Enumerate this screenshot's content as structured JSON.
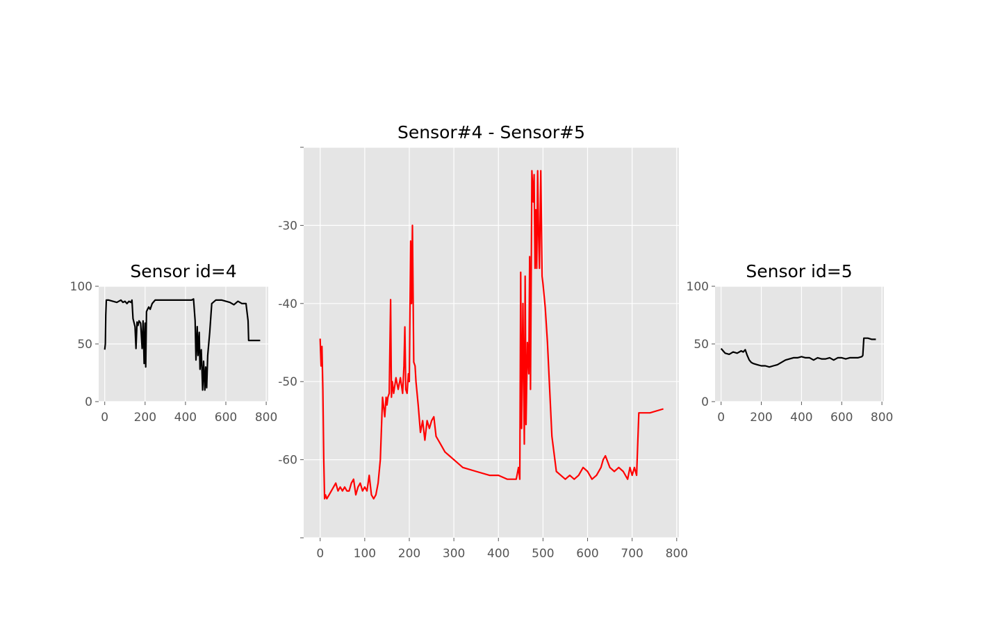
{
  "chart_data": [
    {
      "id": "left",
      "type": "line",
      "title": "Sensor id=4",
      "color": "#000000",
      "xlim": [
        -30,
        810
      ],
      "ylim": [
        0,
        100
      ],
      "xticks": [
        0,
        200,
        400,
        600,
        800
      ],
      "yticks": [
        0,
        50,
        100
      ],
      "xtick_labels": [
        "0",
        "200",
        "400",
        "600",
        "800"
      ],
      "ytick_labels": [
        "0",
        "50",
        "100"
      ],
      "series": [
        {
          "x": [
            0,
            3,
            5,
            8,
            12,
            20,
            40,
            60,
            80,
            90,
            100,
            110,
            120,
            130,
            135,
            140,
            150,
            155,
            160,
            165,
            170,
            178,
            185,
            190,
            195,
            200,
            203,
            207,
            212,
            218,
            225,
            235,
            250,
            280,
            320,
            360,
            400,
            430,
            440,
            448,
            452,
            458,
            462,
            468,
            472,
            478,
            485,
            490,
            496,
            500,
            505,
            510,
            520,
            530,
            550,
            580,
            620,
            640,
            660,
            680,
            700,
            710,
            713,
            720,
            740,
            770
          ],
          "y": [
            45,
            50,
            75,
            88,
            88,
            88,
            87,
            86,
            88,
            86,
            87,
            85,
            87,
            86,
            88,
            72,
            65,
            46,
            69,
            66,
            70,
            68,
            46,
            70,
            33,
            68,
            30,
            78,
            80,
            82,
            80,
            85,
            88,
            88,
            88,
            88,
            88,
            88,
            89,
            70,
            36,
            65,
            40,
            60,
            28,
            45,
            10,
            35,
            10,
            30,
            12,
            40,
            60,
            85,
            88,
            88,
            86,
            84,
            87,
            85,
            85,
            70,
            53,
            53,
            53,
            53
          ]
        }
      ]
    },
    {
      "id": "center",
      "type": "line",
      "title": "Sensor#4 - Sensor#5",
      "color": "#ff0000",
      "xlim": [
        -37,
        805
      ],
      "ylim": [
        -70,
        -20
      ],
      "xticks": [
        0,
        100,
        200,
        300,
        400,
        500,
        600,
        700,
        800
      ],
      "yticks": [
        -70,
        -60,
        -50,
        -40,
        -30,
        -20
      ],
      "xtick_labels": [
        "0",
        "100",
        "200",
        "300",
        "400",
        "500",
        "600",
        "700",
        "800"
      ],
      "ytick_labels": [
        "",
        "-60",
        "-50",
        "-40",
        "-30",
        ""
      ],
      "series": [
        {
          "x": [
            0,
            2,
            4,
            6,
            8,
            10,
            12,
            15,
            20,
            25,
            30,
            35,
            40,
            45,
            50,
            55,
            60,
            65,
            70,
            75,
            80,
            85,
            90,
            95,
            100,
            105,
            110,
            115,
            120,
            125,
            130,
            135,
            140,
            145,
            148,
            150,
            152,
            155,
            158,
            160,
            162,
            165,
            170,
            175,
            180,
            185,
            188,
            190,
            192,
            195,
            198,
            200,
            203,
            205,
            207,
            210,
            213,
            215,
            220,
            225,
            230,
            235,
            240,
            245,
            250,
            255,
            260,
            265,
            270,
            280,
            290,
            300,
            320,
            350,
            380,
            400,
            420,
            440,
            445,
            448,
            450,
            452,
            455,
            458,
            460,
            462,
            465,
            468,
            470,
            472,
            475,
            478,
            480,
            482,
            484,
            486,
            488,
            490,
            492,
            495,
            498,
            500,
            505,
            510,
            520,
            530,
            540,
            550,
            560,
            570,
            580,
            590,
            600,
            610,
            620,
            630,
            635,
            640,
            650,
            660,
            670,
            680,
            690,
            695,
            700,
            705,
            710,
            715,
            720,
            740,
            770
          ],
          "y": [
            -44.5,
            -48,
            -45.5,
            -51,
            -60,
            -65,
            -64.5,
            -65,
            -64.5,
            -64,
            -63.5,
            -63,
            -64,
            -63.5,
            -64,
            -63.5,
            -64,
            -64,
            -63,
            -62.5,
            -64.5,
            -63.5,
            -63,
            -64,
            -63.5,
            -64,
            -62,
            -64.5,
            -65,
            -64.5,
            -63,
            -60,
            -52,
            -54.5,
            -52,
            -53,
            -52,
            -51.5,
            -39.5,
            -52,
            -50,
            -51.5,
            -49.5,
            -51,
            -49.5,
            -51.5,
            -48,
            -43,
            -51,
            -51.5,
            -49,
            -50,
            -32,
            -40,
            -30,
            -47.5,
            -48,
            -50,
            -53,
            -56.5,
            -55,
            -57.5,
            -55,
            -56,
            -55,
            -54.5,
            -57,
            -57.5,
            -58,
            -59,
            -59.5,
            -60,
            -61,
            -61.5,
            -62,
            -62,
            -62.5,
            -62.5,
            -61,
            -62.5,
            -36,
            -56,
            -40,
            -58,
            -36.5,
            -55.5,
            -45,
            -49,
            -34,
            -51,
            -23,
            -27,
            -23.5,
            -35.5,
            -28,
            -35.5,
            -23,
            -31,
            -35.5,
            -23,
            -36.5,
            -37.5,
            -40.5,
            -45,
            -57,
            -61.5,
            -62,
            -62.5,
            -62,
            -62.5,
            -62,
            -61,
            -61.5,
            -62.5,
            -62,
            -61,
            -60,
            -59.5,
            -61,
            -61.5,
            -61,
            -61.5,
            -62.5,
            -61,
            -62,
            -61,
            -62,
            -54,
            -54,
            -54,
            -53.5
          ]
        }
      ]
    },
    {
      "id": "right",
      "type": "line",
      "title": "Sensor id=5",
      "color": "#000000",
      "xlim": [
        -30,
        810
      ],
      "ylim": [
        0,
        100
      ],
      "xticks": [
        0,
        200,
        400,
        600,
        800
      ],
      "yticks": [
        0,
        50,
        100
      ],
      "xtick_labels": [
        "0",
        "200",
        "400",
        "600",
        "800"
      ],
      "ytick_labels": [
        "0",
        "50",
        "100"
      ],
      "series": [
        {
          "x": [
            0,
            10,
            20,
            40,
            60,
            80,
            100,
            110,
            120,
            130,
            140,
            150,
            160,
            180,
            200,
            220,
            240,
            260,
            280,
            300,
            320,
            340,
            360,
            380,
            400,
            420,
            440,
            460,
            480,
            500,
            520,
            540,
            560,
            580,
            600,
            620,
            640,
            660,
            680,
            700,
            705,
            710,
            730,
            750,
            770
          ],
          "y": [
            46,
            44,
            42,
            41,
            43,
            42,
            44,
            43,
            45,
            40,
            36,
            34,
            33,
            32,
            31,
            31,
            30,
            31,
            32,
            34,
            36,
            37,
            38,
            38,
            39,
            38,
            38,
            36,
            38,
            37,
            37,
            38,
            36,
            38,
            38,
            37,
            38,
            38,
            38,
            39,
            40,
            55,
            55,
            54,
            54
          ]
        }
      ]
    }
  ]
}
